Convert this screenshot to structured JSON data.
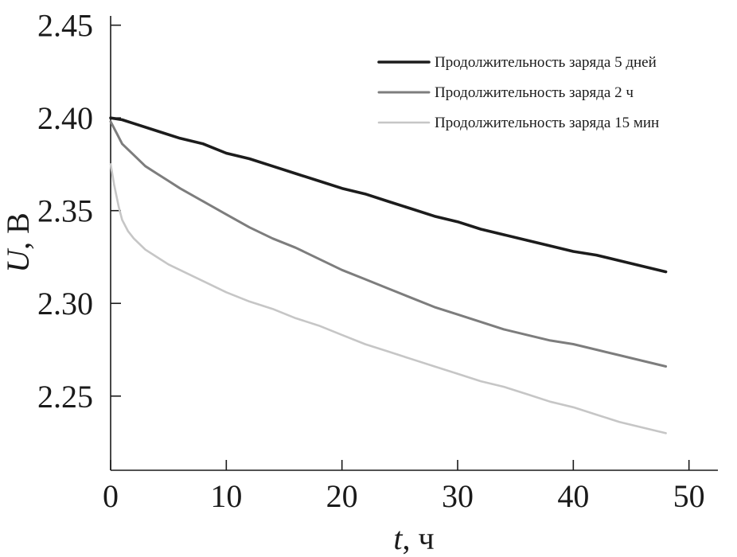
{
  "chart_data": {
    "type": "line",
    "title": "",
    "xlabel": {
      "symbol": "t",
      "unit": ", ч"
    },
    "ylabel": {
      "symbol": "U",
      "unit": ", В"
    },
    "xlim": [
      0,
      52.5
    ],
    "ylim": [
      2.21,
      2.455
    ],
    "xticks": [
      0,
      10,
      20,
      30,
      40,
      50
    ],
    "xtick_labels": [
      "0",
      "10",
      "20",
      "30",
      "40",
      "50"
    ],
    "yticks": [
      2.25,
      2.3,
      2.35,
      2.4,
      2.45
    ],
    "ytick_labels": [
      "2.25",
      "2.30",
      "2.35",
      "2.40",
      "2.45"
    ],
    "grid": false,
    "legend_position": "top-right",
    "series": [
      {
        "name": "Продолжительность заряда 5 дней",
        "color": "#1c1c1c",
        "x": [
          0,
          1,
          2,
          4,
          6,
          8,
          10,
          12,
          14,
          16,
          18,
          20,
          22,
          24,
          26,
          28,
          30,
          32,
          34,
          36,
          38,
          40,
          42,
          44,
          46,
          48
        ],
        "y": [
          2.4,
          2.399,
          2.397,
          2.393,
          2.389,
          2.386,
          2.381,
          2.378,
          2.374,
          2.37,
          2.366,
          2.362,
          2.359,
          2.355,
          2.351,
          2.347,
          2.344,
          2.34,
          2.337,
          2.334,
          2.331,
          2.328,
          2.326,
          2.323,
          2.32,
          2.317
        ]
      },
      {
        "name": "Продолжительность заряда 2 ч",
        "color": "#7d7d7d",
        "x": [
          0,
          0.5,
          1,
          2,
          3,
          4,
          5,
          6,
          8,
          10,
          12,
          14,
          16,
          18,
          20,
          22,
          24,
          26,
          28,
          30,
          32,
          34,
          36,
          38,
          40,
          42,
          44,
          46,
          48
        ],
        "y": [
          2.398,
          2.392,
          2.386,
          2.38,
          2.374,
          2.37,
          2.366,
          2.362,
          2.355,
          2.348,
          2.341,
          2.335,
          2.33,
          2.324,
          2.318,
          2.313,
          2.308,
          2.303,
          2.298,
          2.294,
          2.29,
          2.286,
          2.283,
          2.28,
          2.278,
          2.275,
          2.272,
          2.269,
          2.266
        ]
      },
      {
        "name": "Продолжительность заряда 15 мин",
        "color": "#c6c6c6",
        "x": [
          0,
          0.3,
          0.7,
          1,
          1.5,
          2,
          3,
          4,
          5,
          6,
          8,
          10,
          12,
          14,
          16,
          18,
          20,
          22,
          24,
          26,
          28,
          30,
          32,
          34,
          36,
          38,
          40,
          42,
          44,
          46,
          48
        ],
        "y": [
          2.375,
          2.364,
          2.352,
          2.345,
          2.339,
          2.335,
          2.329,
          2.325,
          2.321,
          2.318,
          2.312,
          2.306,
          2.301,
          2.297,
          2.292,
          2.288,
          2.283,
          2.278,
          2.274,
          2.27,
          2.266,
          2.262,
          2.258,
          2.255,
          2.251,
          2.247,
          2.244,
          2.24,
          2.236,
          2.233,
          2.23
        ]
      }
    ]
  }
}
